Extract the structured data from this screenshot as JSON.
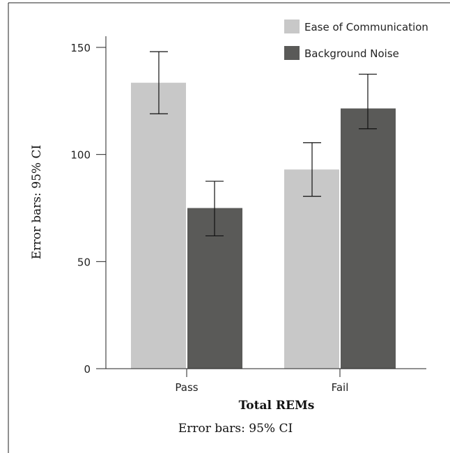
{
  "chart_data": {
    "type": "bar",
    "categories": [
      "Pass",
      "Fail"
    ],
    "series": [
      {
        "name": "Ease of Communication",
        "color": "#c8c8c8",
        "values": [
          133.5,
          93
        ],
        "ci_low": [
          119,
          80.5
        ],
        "ci_high": [
          148,
          105.5
        ]
      },
      {
        "name": "Background Noise",
        "color": "#5a5a58",
        "values": [
          75,
          121.5
        ],
        "ci_low": [
          62,
          112
        ],
        "ci_high": [
          87.5,
          137.5
        ]
      }
    ],
    "xlabel": "Total REMs",
    "ylabel": "Error bars: 95% CI",
    "ylim": [
      0,
      150
    ],
    "yticks": [
      "0",
      "50",
      "100",
      "150"
    ],
    "footnote": "Error bars: 95% CI",
    "legend": "top-right",
    "grid": false
  }
}
